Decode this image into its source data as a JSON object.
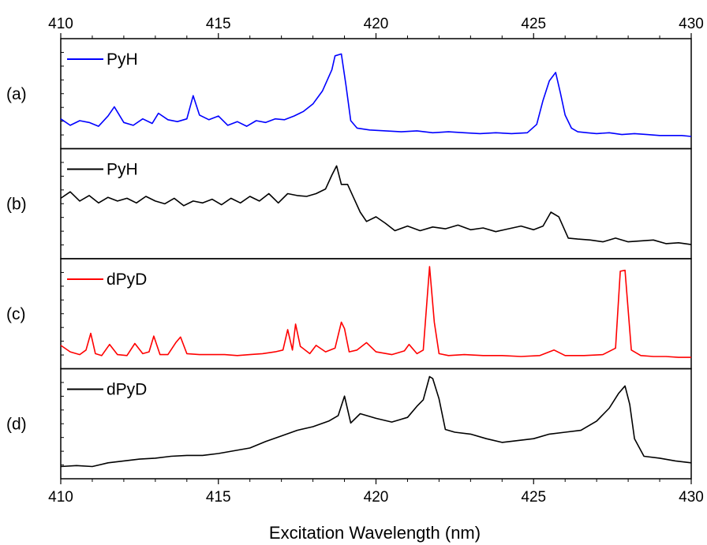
{
  "chart_data": {
    "type": "line",
    "xlabel": "Excitation Wavelength (nm)",
    "xlim": [
      410,
      430
    ],
    "x_ticks": [
      410,
      415,
      420,
      425,
      430
    ],
    "x_tick_labels": [
      "410",
      "415",
      "420",
      "425",
      "430"
    ],
    "grid": false,
    "legend_placement": "top-left",
    "panels": [
      {
        "id": "a",
        "label": "(a)",
        "series_name": "PyH",
        "color": "#0000ff",
        "ylim": [
          0,
          1
        ],
        "x": [
          410.0,
          410.3,
          410.6,
          410.9,
          411.2,
          411.5,
          411.7,
          412.0,
          412.3,
          412.6,
          412.9,
          413.1,
          413.4,
          413.7,
          414.0,
          414.2,
          414.4,
          414.7,
          415.0,
          415.3,
          415.6,
          415.9,
          416.2,
          416.5,
          416.8,
          417.1,
          417.4,
          417.7,
          418.0,
          418.3,
          418.6,
          418.7,
          418.9,
          419.05,
          419.2,
          419.4,
          419.8,
          420.3,
          420.8,
          421.3,
          421.8,
          422.3,
          422.8,
          423.3,
          423.8,
          424.3,
          424.8,
          425.1,
          425.3,
          425.5,
          425.7,
          425.85,
          426.0,
          426.2,
          426.4,
          426.7,
          427.0,
          427.4,
          427.8,
          428.2,
          428.6,
          429.0,
          429.4,
          429.7,
          430.0
        ],
        "values": [
          0.22,
          0.15,
          0.2,
          0.18,
          0.14,
          0.25,
          0.35,
          0.18,
          0.15,
          0.22,
          0.17,
          0.28,
          0.21,
          0.19,
          0.22,
          0.47,
          0.26,
          0.21,
          0.25,
          0.15,
          0.19,
          0.14,
          0.2,
          0.18,
          0.22,
          0.21,
          0.25,
          0.3,
          0.38,
          0.52,
          0.75,
          0.9,
          0.92,
          0.58,
          0.2,
          0.12,
          0.1,
          0.09,
          0.08,
          0.09,
          0.07,
          0.08,
          0.07,
          0.06,
          0.07,
          0.06,
          0.07,
          0.16,
          0.42,
          0.63,
          0.72,
          0.5,
          0.26,
          0.12,
          0.08,
          0.07,
          0.06,
          0.07,
          0.05,
          0.06,
          0.05,
          0.04,
          0.04,
          0.04,
          0.03
        ]
      },
      {
        "id": "b",
        "label": "(b)",
        "series_name": "PyH",
        "color": "#000000",
        "ylim": [
          0,
          1
        ],
        "x": [
          410.0,
          410.3,
          410.6,
          410.9,
          411.2,
          411.5,
          411.8,
          412.1,
          412.4,
          412.7,
          413.0,
          413.3,
          413.6,
          413.9,
          414.2,
          414.5,
          414.8,
          415.1,
          415.4,
          415.7,
          416.0,
          416.3,
          416.6,
          416.9,
          417.2,
          417.5,
          417.8,
          418.1,
          418.4,
          418.6,
          418.75,
          418.9,
          419.1,
          419.3,
          419.5,
          419.7,
          420.0,
          420.3,
          420.6,
          421.0,
          421.4,
          421.8,
          422.2,
          422.6,
          423.0,
          423.4,
          423.8,
          424.2,
          424.6,
          425.0,
          425.3,
          425.55,
          425.8,
          426.1,
          426.4,
          426.8,
          427.2,
          427.6,
          428.0,
          428.4,
          428.8,
          429.2,
          429.6,
          430.0
        ],
        "values": [
          0.55,
          0.62,
          0.52,
          0.58,
          0.5,
          0.56,
          0.52,
          0.55,
          0.5,
          0.57,
          0.52,
          0.49,
          0.55,
          0.47,
          0.52,
          0.5,
          0.54,
          0.48,
          0.55,
          0.5,
          0.57,
          0.52,
          0.6,
          0.5,
          0.6,
          0.58,
          0.57,
          0.6,
          0.65,
          0.8,
          0.9,
          0.7,
          0.7,
          0.55,
          0.4,
          0.3,
          0.35,
          0.28,
          0.2,
          0.25,
          0.2,
          0.24,
          0.22,
          0.26,
          0.21,
          0.23,
          0.19,
          0.22,
          0.25,
          0.21,
          0.25,
          0.4,
          0.35,
          0.12,
          0.11,
          0.1,
          0.08,
          0.12,
          0.08,
          0.09,
          0.1,
          0.06,
          0.07,
          0.05
        ]
      },
      {
        "id": "c",
        "label": "(c)",
        "series_name": "dPyD",
        "color": "#ff0000",
        "ylim": [
          0,
          1
        ],
        "x": [
          410.0,
          410.3,
          410.6,
          410.8,
          410.95,
          411.1,
          411.3,
          411.55,
          411.8,
          412.1,
          412.35,
          412.6,
          412.8,
          412.95,
          413.15,
          413.4,
          413.65,
          413.8,
          414.0,
          414.4,
          414.8,
          415.2,
          415.6,
          416.0,
          416.4,
          416.8,
          417.05,
          417.2,
          417.35,
          417.45,
          417.6,
          417.9,
          418.1,
          418.4,
          418.7,
          418.9,
          419.0,
          419.15,
          419.4,
          419.7,
          420.0,
          420.5,
          420.9,
          421.05,
          421.3,
          421.5,
          421.7,
          421.85,
          422.0,
          422.3,
          422.8,
          423.4,
          424.0,
          424.6,
          425.2,
          425.65,
          426.0,
          426.6,
          427.2,
          427.6,
          427.75,
          427.9,
          428.1,
          428.4,
          428.8,
          429.2,
          429.6,
          430.0
        ],
        "values": [
          0.15,
          0.08,
          0.05,
          0.1,
          0.28,
          0.06,
          0.04,
          0.16,
          0.05,
          0.04,
          0.17,
          0.06,
          0.08,
          0.25,
          0.05,
          0.05,
          0.18,
          0.24,
          0.06,
          0.05,
          0.05,
          0.05,
          0.04,
          0.05,
          0.06,
          0.08,
          0.1,
          0.32,
          0.1,
          0.38,
          0.14,
          0.06,
          0.15,
          0.08,
          0.12,
          0.4,
          0.33,
          0.08,
          0.1,
          0.18,
          0.08,
          0.05,
          0.09,
          0.16,
          0.06,
          0.1,
          1.0,
          0.4,
          0.06,
          0.04,
          0.05,
          0.04,
          0.04,
          0.03,
          0.04,
          0.1,
          0.04,
          0.04,
          0.05,
          0.12,
          0.95,
          0.96,
          0.1,
          0.04,
          0.03,
          0.03,
          0.02,
          0.02
        ]
      },
      {
        "id": "d",
        "label": "(d)",
        "series_name": "dPyD",
        "color": "#000000",
        "ylim": [
          0,
          1
        ],
        "x": [
          410.0,
          410.5,
          411.0,
          411.5,
          412.0,
          412.5,
          413.0,
          413.5,
          414.0,
          414.5,
          415.0,
          415.5,
          416.0,
          416.5,
          417.0,
          417.5,
          418.0,
          418.5,
          418.8,
          419.0,
          419.2,
          419.5,
          420.0,
          420.5,
          421.0,
          421.3,
          421.5,
          421.7,
          421.8,
          422.0,
          422.2,
          422.5,
          423.0,
          423.5,
          424.0,
          424.5,
          425.0,
          425.5,
          426.0,
          426.5,
          427.0,
          427.4,
          427.7,
          427.9,
          428.05,
          428.2,
          428.5,
          429.0,
          429.5,
          430.0
        ],
        "values": [
          0.03,
          0.04,
          0.03,
          0.07,
          0.09,
          0.11,
          0.12,
          0.14,
          0.15,
          0.15,
          0.17,
          0.2,
          0.23,
          0.3,
          0.36,
          0.42,
          0.46,
          0.52,
          0.58,
          0.79,
          0.5,
          0.6,
          0.55,
          0.51,
          0.56,
          0.68,
          0.75,
          1.0,
          0.98,
          0.76,
          0.43,
          0.4,
          0.38,
          0.33,
          0.29,
          0.31,
          0.33,
          0.38,
          0.4,
          0.42,
          0.52,
          0.66,
          0.82,
          0.9,
          0.7,
          0.33,
          0.14,
          0.12,
          0.09,
          0.07
        ]
      }
    ]
  }
}
